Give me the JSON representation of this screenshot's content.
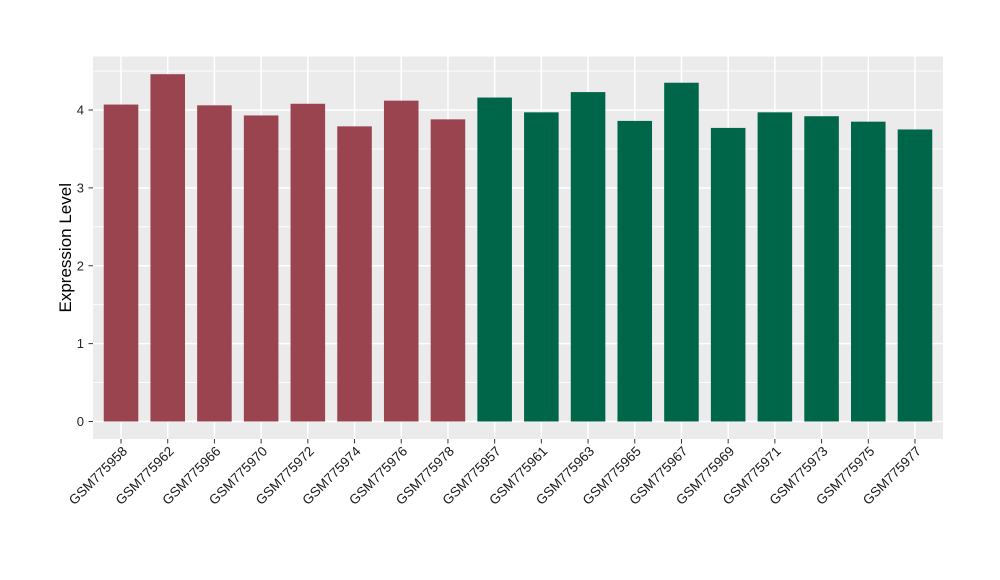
{
  "chart_data": {
    "type": "bar",
    "title": "",
    "xlabel": "",
    "ylabel": "Expression Level",
    "categories": [
      "GSM775958",
      "GSM775962",
      "GSM775966",
      "GSM775970",
      "GSM775972",
      "GSM775974",
      "GSM775976",
      "GSM775978",
      "GSM775957",
      "GSM775961",
      "GSM775963",
      "GSM775965",
      "GSM775967",
      "GSM775969",
      "GSM775971",
      "GSM775973",
      "GSM775975",
      "GSM775977"
    ],
    "values": [
      4.07,
      4.46,
      4.06,
      3.93,
      4.08,
      3.79,
      4.12,
      3.88,
      4.16,
      3.97,
      4.23,
      3.86,
      4.35,
      3.77,
      3.97,
      3.92,
      3.85,
      3.75
    ],
    "group_of_bar": [
      0,
      0,
      0,
      0,
      0,
      0,
      0,
      0,
      1,
      1,
      1,
      1,
      1,
      1,
      1,
      1,
      1,
      1
    ],
    "group_colors": [
      "#9A4450",
      "#006649"
    ],
    "yticks": [
      0,
      1,
      2,
      3,
      4
    ],
    "ytick_labels": [
      "0",
      "1",
      "2",
      "3",
      "4"
    ],
    "minor_gridlines": [
      0.5,
      1.5,
      2.5,
      3.5,
      4.5
    ],
    "ylim": [
      0,
      4.68
    ],
    "grid": true,
    "legend": "none",
    "panel_bg": "#EBEBEB",
    "grid_color": "#FFFFFF",
    "tick_mark_color": "#333333",
    "x_label_angle_deg": 45
  }
}
